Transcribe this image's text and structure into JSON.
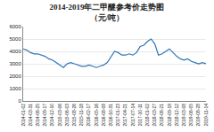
{
  "chart_data": {
    "type": "line",
    "title": "2014-2019年二甲醚参考价走势图",
    "subtitle": "（元/吨）",
    "categories": [
      "2014-01-02",
      null,
      "2014-03-31",
      null,
      "2014-06-25",
      null,
      "2014-09-17",
      null,
      "2014-12-10",
      null,
      "2015-03-06",
      null,
      "2015-06-03",
      null,
      "2015-08-26",
      null,
      "2015-11-18",
      null,
      "2016-02-17",
      null,
      "2016-05-16",
      null,
      "2016-08-08",
      null,
      "2016-10-31",
      null,
      "2017-01-23",
      null,
      "2017-04-21",
      null,
      "2017-07-14",
      null,
      "2017-10-11",
      null,
      "2018-01-02",
      null,
      "2018-03-27",
      null,
      "2018-06-21",
      null,
      "2018-09-19",
      null,
      "2018-12-12",
      null,
      "2019-03-08",
      null,
      "2019-06-05",
      null,
      "2019-08-28",
      null,
      "2019-11-14"
    ],
    "values": [
      4200,
      4100,
      3900,
      3800,
      3800,
      3700,
      3600,
      3400,
      3300,
      3100,
      2900,
      2700,
      3000,
      3100,
      3000,
      2900,
      2800,
      2800,
      2900,
      2800,
      2700,
      2800,
      2900,
      3100,
      3600,
      4000,
      3900,
      3700,
      3700,
      3800,
      3700,
      3900,
      4400,
      4500,
      4800,
      5000,
      4600,
      3700,
      3800,
      4000,
      4200,
      3900,
      3600,
      3400,
      3300,
      3400,
      3200,
      3100,
      3000,
      3100,
      3000
    ],
    "color": "#2e75b6",
    "ylim": [
      0,
      6000
    ],
    "yticks": [
      0,
      1000,
      2000,
      3000,
      4000,
      5000,
      6000
    ],
    "grid": true
  }
}
